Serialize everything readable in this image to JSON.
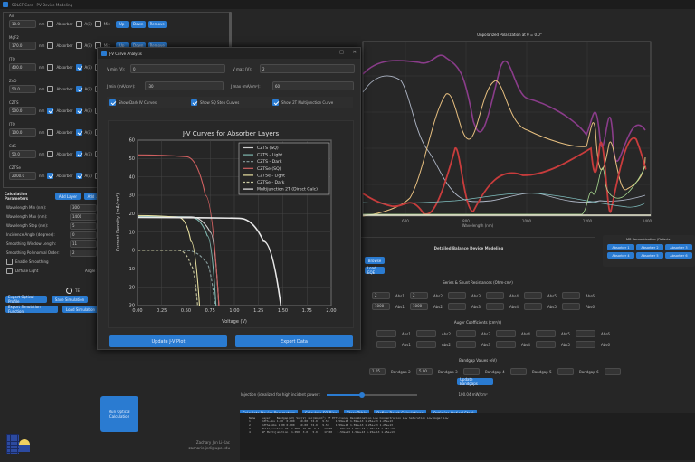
{
  "window": {
    "title": "SOLCF Core - PV Device Modeling"
  },
  "layers": [
    {
      "name": "Air",
      "thickness": "10.0",
      "unit": "nm",
      "absorber": false,
      "a": false,
      "mix": false
    },
    {
      "name": "MgF2",
      "thickness": "170.0",
      "unit": "nm",
      "absorber": false,
      "a": false,
      "mix": false
    },
    {
      "name": "ITO",
      "thickness": "400.0",
      "unit": "nm",
      "absorber": false,
      "a": true,
      "mix": false
    },
    {
      "name": "ZnO",
      "thickness": "50.0",
      "unit": "nm",
      "absorber": false,
      "a": true,
      "mix": false
    },
    {
      "name": "CZTS",
      "thickness": "500.0",
      "unit": "nm",
      "absorber": true,
      "a": true,
      "mix": false
    },
    {
      "name": "ITO",
      "thickness": "100.0",
      "unit": "nm",
      "absorber": false,
      "a": true,
      "mix": false
    },
    {
      "name": "CdS",
      "thickness": "50.0",
      "unit": "nm",
      "absorber": false,
      "a": true,
      "mix": false
    },
    {
      "name": "CZTSe",
      "thickness": "2000.0",
      "unit": "nm",
      "absorber": true,
      "a": true,
      "mix": false
    }
  ],
  "layer_labels": {
    "absorber": "Absorber",
    "a": "A(λ)",
    "mix": "Mix",
    "up": "Up",
    "down": "Down",
    "remove": "Remove"
  },
  "calc": {
    "title": "Calculation Parameters",
    "add_layer": "Add Layer",
    "add2": "Add ...",
    "params": [
      {
        "label": "Wavelength Min (nm):",
        "value": "300"
      },
      {
        "label": "Wavelength Max (nm):",
        "value": "1400"
      },
      {
        "label": "Wavelength Step (nm):",
        "value": "5"
      },
      {
        "label": "Incidence Angle (degrees):",
        "value": "0"
      },
      {
        "label": "Smoothing Window Length:",
        "value": "11"
      },
      {
        "label": "Smoothing Polynomial Order:",
        "value": "2"
      }
    ],
    "enable_smoothing": "Enable Smoothing",
    "diffuse_light": "Diffuse Light",
    "angle_steps_label": "Angle Steps",
    "angle_steps": "9",
    "radio": "TE",
    "buttons": [
      "Export Optical Profile",
      "Save Simulation",
      "Export Simulation Function",
      "Load Simulation"
    ],
    "run": "Run Optical Calculation",
    "author": "Zachary Jon Li-Kac",
    "email": "zacharie.jedi@upc.edu"
  },
  "modal": {
    "title": "J-V Curve Analysis",
    "vmin_label": "V min (V):",
    "vmin": "0",
    "vmax_label": "V max (V):",
    "vmax": "2",
    "jmin_label": "J min (mA/cm²):",
    "jmin": "-30",
    "jmax_label": "J max (mA/cm²):",
    "jmax": "60",
    "cb": [
      "Show Dark IV Curves",
      "Show SQ Step Curves",
      "Show 2T Multijunction Curve"
    ],
    "update": "Update J-V Plot",
    "export": "Export Data"
  },
  "chart_data": [
    {
      "type": "line",
      "title": "J-V Curves for Absorber Layers",
      "xlabel": "Voltage (V)",
      "ylabel": "Current Density (mA/cm²)",
      "xlim": [
        0,
        2
      ],
      "ylim": [
        -30,
        60
      ],
      "xticks": [
        "0.00",
        "0.25",
        "0.50",
        "0.75",
        "1.00",
        "1.25",
        "1.50",
        "1.75",
        "2.00"
      ],
      "yticks": [
        "60",
        "50",
        "40",
        "30",
        "20",
        "10",
        "0",
        "-10",
        "-20",
        "-30"
      ],
      "legend": [
        "CZTS (SQ)",
        "CZTS - Light",
        "CZTS - Dark",
        "CZTSe (SQ)",
        "CZTSe - Light",
        "CZTSe - Dark",
        "Multijunction 2T (Direct Calc)"
      ],
      "series": [
        {
          "name": "CZTS (SQ)",
          "color": "#d0d0d0",
          "points": [
            [
              0,
              18.5
            ],
            [
              0.55,
              18.3
            ],
            [
              0.75,
              10
            ],
            [
              0.84,
              -30
            ]
          ]
        },
        {
          "name": "CZTS - Light",
          "color": "#7fb8b0",
          "points": [
            [
              0,
              18.5
            ],
            [
              0.55,
              18
            ],
            [
              0.72,
              8
            ],
            [
              0.81,
              -30
            ]
          ]
        },
        {
          "name": "CZTS - Dark",
          "color": "#8aa0a0",
          "dash": true,
          "points": [
            [
              0,
              0
            ],
            [
              0.5,
              0
            ],
            [
              0.7,
              -6
            ],
            [
              0.8,
              -30
            ]
          ]
        },
        {
          "name": "CZTSe (SQ)",
          "color": "#d06060",
          "points": [
            [
              0,
              52
            ],
            [
              0.5,
              51
            ],
            [
              0.7,
              30
            ],
            [
              0.84,
              -30
            ]
          ]
        },
        {
          "name": "CZTSe - Light",
          "color": "#e8e0a0",
          "points": [
            [
              0,
              19
            ],
            [
              0.42,
              18
            ],
            [
              0.55,
              5
            ],
            [
              0.64,
              -30
            ]
          ]
        },
        {
          "name": "CZTSe - Dark",
          "color": "#c8c8a0",
          "dash": true,
          "points": [
            [
              0,
              0
            ],
            [
              0.42,
              0
            ],
            [
              0.55,
              -8
            ],
            [
              0.62,
              -30
            ]
          ]
        },
        {
          "name": "Multijunction 2T (Direct Calc)",
          "color": "#e8e8e8",
          "points": [
            [
              0,
              18
            ],
            [
              1.05,
              17.5
            ],
            [
              1.3,
              5
            ],
            [
              1.48,
              -30
            ]
          ]
        }
      ]
    },
    {
      "type": "line",
      "title": "Unpolarized Polarization at θ = 0.0°",
      "xlabel": "Wavelength (nm)",
      "xticks": [
        "600",
        "800",
        "1000",
        "1200",
        "1400"
      ]
    }
  ],
  "right": {
    "detailed": "Detailed Balance Device Modeling",
    "browse": "Browse",
    "load_eqe": "Load EQE",
    "mb": "MB Recombination (Defects)",
    "absorbers": [
      "Absorber 1",
      "Absorber 2",
      "Absorber 3",
      "Absorber 4",
      "Absorber 5",
      "Absorber 6"
    ],
    "series_title": "Series & Shunt Resistances (Ohm·cm²)",
    "rs": [
      "2",
      "2",
      "",
      "",
      "",
      ""
    ],
    "rsh": [
      "1000",
      "1000",
      "",
      "",
      "",
      ""
    ],
    "auger_title": "Auger Coefficients (cm⁶/s)",
    "abs_labels": [
      "Abs1",
      "Abs2",
      "Abs3",
      "Abs4",
      "Abs5",
      "Abs6"
    ],
    "bandgap_title": "Bandgap Values (eV)",
    "bandgaps": [
      "1.05",
      "5.00",
      "",
      "",
      "",
      ""
    ],
    "bandgap_labels": [
      "Bandgap 1",
      "Bandgap 2",
      "Bandgap 3",
      "Bandgap 4",
      "Bandgap 5",
      "Bandgap 6"
    ],
    "update_bandgaps": "Update Bandgaps",
    "injection_label": "Injection (idealized for high incident power):",
    "injection_value": "100.04 mW/cm²",
    "buttons": [
      "Calculate Device Parameters",
      "Calculate SQ Bias",
      "Clear Table",
      "Define Batch Calculations",
      "Optimize Optical Stack"
    ],
    "console": "Name    Layer    Bandgap(eV) Voc(V) Jsc(mA/cm²) FF Efficiency Recombination Low Concentration Low Saturation Low Auger Low\n1       CZTS-Abs 1.00  0.000   19.00  74.0   9.50    1.59e+13 1.59e+13 1.25e+13 1.25e+13\n2       CZTSe-Abs 1.00 0.000   19.00  74.0   9.50    1.59e+13 1.59e+13 1.25e+13 1.25e+13\n3       Multijunction 2T  1.050  19.00  5.0   17.00   1.59e+13 1.59e+13 1.25e+13 1.25e+13\n4       SF Multijunction  1.050  3.0   5.0    17.00   1.59e+13 1.59e+13 1.25e+13 1.25e+13"
  }
}
